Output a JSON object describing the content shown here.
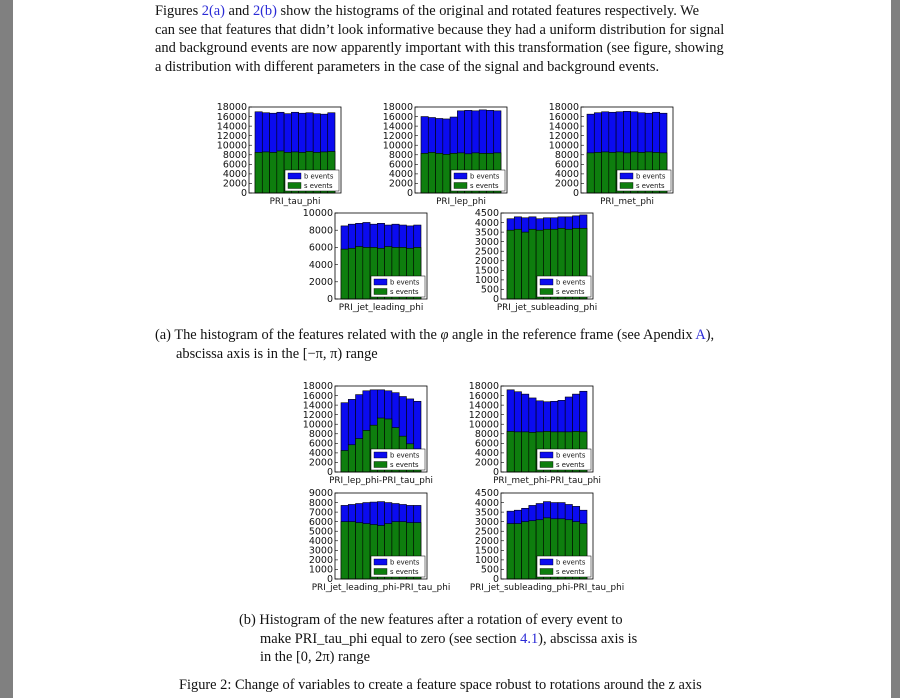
{
  "intro": {
    "l1_a": "Figures ",
    "l1_ref1": "2(a)",
    "l1_b": " and ",
    "l1_ref2": "2(b)",
    "l1_c": " show the histograms of the original and rotated features respectively. We",
    "l2": "can see that features that didn’t look informative because they had a uniform distribution for signal",
    "l3": "and background events are now apparently important with this transformation (see figure, showing",
    "l4": "a distribution with different parameters in the case of the signal and background events."
  },
  "legend": {
    "b": "b events",
    "s": "s events"
  },
  "colors": {
    "b": "#0b0bf0",
    "s": "#0e7e0e",
    "edge": "#000000"
  },
  "charts": [
    {
      "title": "PRI_tau_phi",
      "ticks": [
        "18000",
        "16000",
        "14000",
        "12000",
        "10000",
        "8000",
        "6000",
        "4000",
        "2000",
        "0"
      ]
    },
    {
      "title": "PRI_lep_phi",
      "ticks": [
        "18000",
        "16000",
        "14000",
        "12000",
        "10000",
        "8000",
        "6000",
        "4000",
        "2000",
        "0"
      ]
    },
    {
      "title": "PRI_met_phi",
      "ticks": [
        "18000",
        "16000",
        "14000",
        "12000",
        "10000",
        "8000",
        "6000",
        "4000",
        "2000",
        "0"
      ]
    },
    {
      "title": "PRI_jet_leading_phi",
      "ticks": [
        "10000",
        "8000",
        "6000",
        "4000",
        "2000",
        "0"
      ]
    },
    {
      "title": "PRI_jet_subleading_phi",
      "ticks": [
        "4500",
        "4000",
        "3500",
        "3000",
        "2500",
        "2000",
        "1500",
        "1000",
        "500",
        "0"
      ]
    },
    {
      "title": "PRI_lep_phi-PRI_tau_phi",
      "ticks": [
        "18000",
        "16000",
        "14000",
        "12000",
        "10000",
        "8000",
        "6000",
        "4000",
        "2000",
        "0"
      ]
    },
    {
      "title": "PRI_met_phi-PRI_tau_phi",
      "ticks": [
        "18000",
        "16000",
        "14000",
        "12000",
        "10000",
        "8000",
        "6000",
        "4000",
        "2000",
        "0"
      ]
    },
    {
      "title": "PRI_jet_leading_phi-PRI_tau_phi",
      "ticks": [
        "9000",
        "8000",
        "7000",
        "6000",
        "5000",
        "4000",
        "3000",
        "2000",
        "1000",
        "0"
      ]
    },
    {
      "title": "PRI_jet_subleading_phi-PRI_tau_phi",
      "ticks": [
        "4500",
        "4000",
        "3500",
        "3000",
        "2500",
        "2000",
        "1500",
        "1000",
        "500",
        "0"
      ]
    }
  ],
  "chart_data": [
    {
      "type": "bar",
      "title": "PRI_tau_phi",
      "ylim": [
        0,
        18000
      ],
      "series": [
        {
          "name": "b events",
          "values": [
            17000,
            16800,
            16700,
            16900,
            16600,
            16900,
            16700,
            16800,
            16600,
            16500,
            16800
          ]
        },
        {
          "name": "s events",
          "values": [
            8500,
            8600,
            8500,
            8800,
            8500,
            8600,
            8500,
            8700,
            8500,
            8600,
            8700
          ]
        }
      ]
    },
    {
      "type": "bar",
      "title": "PRI_lep_phi",
      "ylim": [
        0,
        18000
      ],
      "series": [
        {
          "name": "b events",
          "values": [
            16000,
            15800,
            15600,
            15500,
            15900,
            17200,
            17300,
            17200,
            17400,
            17300,
            17200
          ]
        },
        {
          "name": "s events",
          "values": [
            8300,
            8500,
            8300,
            8100,
            8300,
            8400,
            8200,
            8400,
            8300,
            8300,
            8400
          ]
        }
      ]
    },
    {
      "type": "bar",
      "title": "PRI_met_phi",
      "ylim": [
        0,
        18000
      ],
      "series": [
        {
          "name": "b events",
          "values": [
            16500,
            16800,
            17000,
            16900,
            17000,
            17100,
            17000,
            16800,
            16700,
            16900,
            16700
          ]
        },
        {
          "name": "s events",
          "values": [
            8400,
            8500,
            8600,
            8500,
            8600,
            8400,
            8600,
            8500,
            8600,
            8500,
            8400
          ]
        }
      ]
    },
    {
      "type": "bar",
      "title": "PRI_jet_leading_phi",
      "ylim": [
        0,
        10000
      ],
      "series": [
        {
          "name": "b events",
          "values": [
            8500,
            8700,
            8800,
            8900,
            8700,
            8800,
            8600,
            8700,
            8600,
            8500,
            8600
          ]
        },
        {
          "name": "s events",
          "values": [
            5800,
            5900,
            6100,
            6000,
            6000,
            5900,
            6100,
            6000,
            6000,
            5900,
            6000
          ]
        }
      ]
    },
    {
      "type": "bar",
      "title": "PRI_jet_subleading_phi",
      "ylim": [
        0,
        4500
      ],
      "series": [
        {
          "name": "b events",
          "values": [
            4200,
            4300,
            4250,
            4300,
            4200,
            4250,
            4250,
            4300,
            4300,
            4350,
            4400
          ]
        },
        {
          "name": "s events",
          "values": [
            3600,
            3650,
            3500,
            3650,
            3600,
            3650,
            3650,
            3700,
            3650,
            3700,
            3700
          ]
        }
      ]
    },
    {
      "type": "bar",
      "title": "PRI_lep_phi-PRI_tau_phi",
      "ylim": [
        0,
        18000
      ],
      "series": [
        {
          "name": "b events",
          "values": [
            14500,
            15200,
            16200,
            17000,
            17200,
            17200,
            17000,
            16600,
            15800,
            15300,
            14800
          ]
        },
        {
          "name": "s events",
          "values": [
            4500,
            5700,
            7000,
            8700,
            9800,
            11300,
            11100,
            9300,
            7500,
            5900,
            4800
          ]
        }
      ]
    },
    {
      "type": "bar",
      "title": "PRI_met_phi-PRI_tau_phi",
      "ylim": [
        0,
        18000
      ],
      "series": [
        {
          "name": "b events",
          "values": [
            17200,
            16800,
            16300,
            15500,
            14900,
            14700,
            14800,
            15000,
            15700,
            16300,
            16900
          ]
        },
        {
          "name": "s events",
          "values": [
            8500,
            8400,
            8400,
            8300,
            8400,
            8500,
            8400,
            8400,
            8400,
            8500,
            8400
          ]
        }
      ]
    },
    {
      "type": "bar",
      "title": "PRI_jet_leading_phi-PRI_tau_phi",
      "ylim": [
        0,
        9000
      ],
      "series": [
        {
          "name": "b events",
          "values": [
            7700,
            7800,
            7900,
            8000,
            8050,
            8100,
            8000,
            7900,
            7800,
            7700,
            7700
          ]
        },
        {
          "name": "s events",
          "values": [
            6000,
            6000,
            5900,
            5800,
            5700,
            5600,
            5800,
            6000,
            6000,
            5900,
            5900
          ]
        }
      ]
    },
    {
      "type": "bar",
      "title": "PRI_jet_subleading_phi-PRI_tau_phi",
      "ylim": [
        0,
        4500
      ],
      "series": [
        {
          "name": "b events",
          "values": [
            3550,
            3600,
            3700,
            3850,
            3950,
            4050,
            4000,
            4000,
            3900,
            3800,
            3600
          ]
        },
        {
          "name": "s events",
          "values": [
            2900,
            2900,
            3000,
            3050,
            3100,
            3200,
            3150,
            3150,
            3100,
            3000,
            2900
          ]
        }
      ]
    }
  ],
  "caption_a": {
    "label": "(a)",
    "l1_pre": " The histogram of the features related with the ",
    "phi": "φ",
    "l1_post": " angle in the reference frame (see Apendix ",
    "l1_ref": "A",
    "l1_end": "),",
    "l2": "abscissa axis is in the [−π, π) range"
  },
  "caption_b": {
    "label": "(b)",
    "l1": " Histogram of the new features after a rotation of every event to",
    "l2_pre": "make PRI_tau_phi equal to zero (see section ",
    "l2_ref": "4.1",
    "l2_post": "), abscissa axis is",
    "l3": "in the [0, 2π) range"
  },
  "figure_caption": "Figure 2: Change of variables to create a feature space robust to rotations around the z axis"
}
